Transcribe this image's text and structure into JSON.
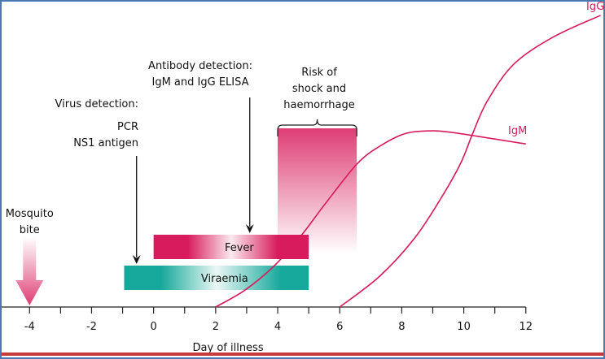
{
  "chart_data": {
    "type": "line",
    "xlabel": "Day of illness",
    "x_ticks": [
      -4,
      -2,
      0,
      2,
      4,
      6,
      8,
      10,
      12
    ],
    "xlim": [
      -4.9,
      14.5
    ],
    "ylim": [
      0,
      1
    ],
    "grid": false,
    "colors": {
      "antibody": "#d81b5c",
      "fever": "#d81b5c",
      "viraemia": "#16a89a",
      "frame": "#4a78b5",
      "bottom_rule": "#c83a3a"
    },
    "series": [
      {
        "name": "IgM",
        "points": [
          [
            2,
            0
          ],
          [
            2.94,
            0.055
          ],
          [
            3.89,
            0.135
          ],
          [
            4.75,
            0.233
          ],
          [
            5.54,
            0.339
          ],
          [
            6.58,
            0.471
          ],
          [
            7.38,
            0.532
          ],
          [
            8.15,
            0.569
          ],
          [
            9.02,
            0.577
          ],
          [
            9.8,
            0.569
          ],
          [
            11,
            0.55
          ],
          [
            12,
            0.534
          ]
        ]
      },
      {
        "name": "IgG",
        "points": [
          [
            6,
            0
          ],
          [
            7.28,
            0.1
          ],
          [
            8.41,
            0.225
          ],
          [
            9.27,
            0.357
          ],
          [
            9.9,
            0.471
          ],
          [
            10.29,
            0.569
          ],
          [
            10.76,
            0.675
          ],
          [
            11.62,
            0.796
          ],
          [
            12.92,
            0.886
          ],
          [
            14.41,
            0.955
          ]
        ]
      }
    ],
    "bars": [
      {
        "label": "Fever",
        "start": 0,
        "end": 5
      },
      {
        "label": "Viraemia",
        "start": -0.95,
        "end": 5
      }
    ],
    "risk_window": {
      "start": 4,
      "end": 6.55
    },
    "annotations": {
      "mosquito": [
        "Mosquito",
        "bite"
      ],
      "mosquito_day": -4,
      "virus_detection": [
        "Virus detection:",
        "PCR",
        "NS1 antigen"
      ],
      "virus_detection_day": -0.55,
      "antibody_detection": [
        "Antibody detection:",
        "IgM and IgG ELISA"
      ],
      "antibody_detection_day": 3.1,
      "risk": [
        "Risk of",
        "shock and",
        "haemorrhage"
      ]
    }
  }
}
